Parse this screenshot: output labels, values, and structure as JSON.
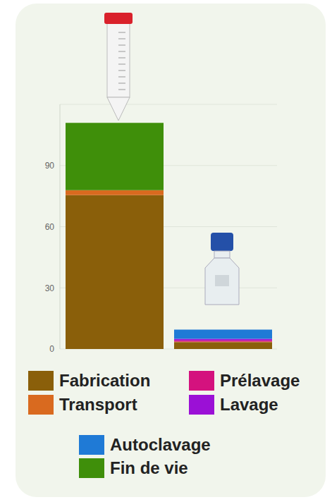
{
  "chart_data": {
    "type": "bar",
    "categories": [
      null,
      null
    ],
    "series": [
      {
        "name": "Fabrication",
        "color": "#8a5f0a",
        "values": [
          75.5,
          3.4
        ]
      },
      {
        "name": "Transport",
        "color": "#d96a1f",
        "values": [
          2.4,
          0.2
        ]
      },
      {
        "name": "Prélavage",
        "color": "#d4127e",
        "values": [
          0,
          0.6
        ]
      },
      {
        "name": "Lavage",
        "color": "#9b10d6",
        "values": [
          0,
          0.8
        ]
      },
      {
        "name": "Autoclavage",
        "color": "#1f7ad6",
        "values": [
          0,
          4.5
        ]
      },
      {
        "name": "Fin de vie",
        "color": "#3f8f0a",
        "values": [
          33,
          0
        ]
      }
    ],
    "ylim": [
      0,
      120
    ],
    "yticks": [
      0,
      30,
      60,
      90
    ],
    "grid": true,
    "stacked": true,
    "legend": "bottom"
  }
}
